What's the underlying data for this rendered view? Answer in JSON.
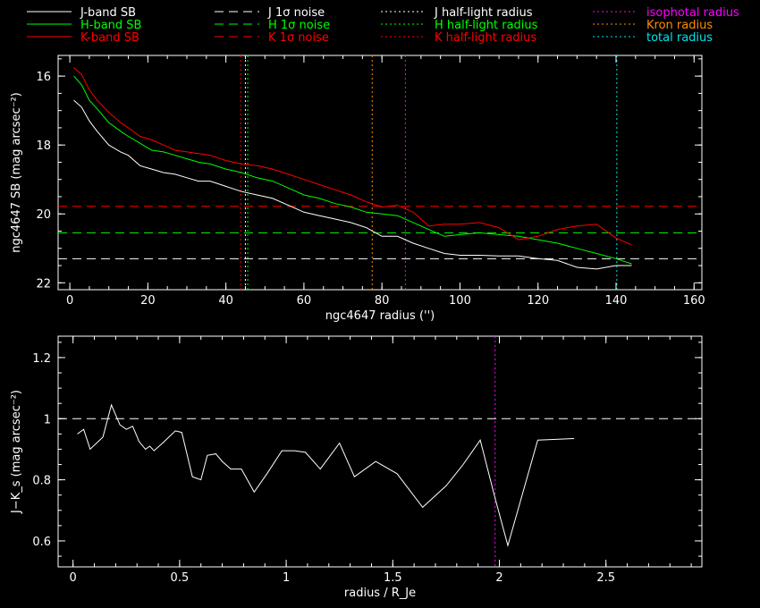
{
  "legend": [
    {
      "label": "J-band SB",
      "color": "#ffffff",
      "dash": "solid"
    },
    {
      "label": "H-band SB",
      "color": "#00ff00",
      "dash": "solid"
    },
    {
      "label": "K-band SB",
      "color": "#ff0000",
      "dash": "solid"
    },
    {
      "label": "J 1σ noise",
      "color": "#ffffff",
      "dash": "dashed"
    },
    {
      "label": "H 1σ noise",
      "color": "#00ff00",
      "dash": "dashed"
    },
    {
      "label": "K 1σ noise",
      "color": "#ff0000",
      "dash": "dashed"
    },
    {
      "label": "J half-light radius",
      "color": "#ffffff",
      "dash": "dotted"
    },
    {
      "label": "H half-light radius",
      "color": "#00ff00",
      "dash": "dotted"
    },
    {
      "label": "K half-light radius",
      "color": "#ff0000",
      "dash": "dotted"
    },
    {
      "label": "isophotal radius",
      "color": "#ff00ff",
      "dash": "dotted"
    },
    {
      "label": "Kron radius",
      "color": "#ff8c00",
      "dash": "dotted"
    },
    {
      "label": "total radius",
      "color": "#00e5ee",
      "dash": "dotted"
    }
  ],
  "chart_data": [
    {
      "type": "line",
      "xlabel": "ngc4647 radius ('')",
      "ylabel": "ngc4647 SB (mag arcsec⁻²)",
      "xlim": [
        -3,
        162
      ],
      "ylim": [
        22.2,
        15.4
      ],
      "y_inverted": true,
      "xticks": [
        0,
        20,
        40,
        60,
        80,
        100,
        120,
        140,
        160
      ],
      "yticks": [
        16,
        18,
        20,
        22
      ],
      "series": [
        {
          "name": "J-band SB",
          "color": "#ffffff",
          "x": [
            1,
            3,
            5,
            7,
            10,
            13,
            15,
            18,
            21,
            24,
            27,
            30,
            33,
            36,
            40,
            44,
            48,
            52,
            56,
            60,
            64,
            68,
            72,
            76,
            80,
            84,
            88,
            92,
            96,
            100,
            105,
            110,
            115,
            120,
            125,
            130,
            135,
            140,
            144
          ],
          "y": [
            16.7,
            16.9,
            17.3,
            17.6,
            18.0,
            18.2,
            18.3,
            18.6,
            18.7,
            18.8,
            18.85,
            18.95,
            19.05,
            19.05,
            19.2,
            19.35,
            19.45,
            19.55,
            19.75,
            19.95,
            20.05,
            20.15,
            20.25,
            20.4,
            20.65,
            20.65,
            20.85,
            21.0,
            21.15,
            21.2,
            21.2,
            21.22,
            21.22,
            21.3,
            21.35,
            21.55,
            21.6,
            21.5,
            21.5
          ]
        },
        {
          "name": "H-band SB",
          "color": "#00ff00",
          "x": [
            1,
            3,
            5,
            7,
            10,
            13,
            15,
            18,
            21,
            24,
            27,
            30,
            33,
            36,
            40,
            44,
            48,
            52,
            56,
            60,
            64,
            68,
            72,
            76,
            80,
            84,
            88,
            92,
            96,
            100,
            105,
            110,
            115,
            120,
            125,
            130,
            135,
            140,
            144
          ],
          "y": [
            16.0,
            16.25,
            16.7,
            16.95,
            17.35,
            17.6,
            17.75,
            17.95,
            18.15,
            18.2,
            18.3,
            18.4,
            18.5,
            18.55,
            18.7,
            18.8,
            18.95,
            19.05,
            19.25,
            19.45,
            19.55,
            19.7,
            19.8,
            19.95,
            20.0,
            20.05,
            20.25,
            20.45,
            20.65,
            20.6,
            20.55,
            20.6,
            20.65,
            20.75,
            20.85,
            21.0,
            21.15,
            21.3,
            21.45
          ]
        },
        {
          "name": "K-band SB",
          "color": "#ff0000",
          "x": [
            1,
            3,
            5,
            7,
            10,
            13,
            15,
            18,
            21,
            24,
            27,
            30,
            33,
            36,
            40,
            44,
            48,
            52,
            56,
            60,
            64,
            68,
            72,
            76,
            80,
            84,
            88,
            92,
            96,
            100,
            105,
            110,
            115,
            120,
            125,
            130,
            135,
            140,
            144
          ],
          "y": [
            15.75,
            15.95,
            16.4,
            16.7,
            17.05,
            17.35,
            17.5,
            17.75,
            17.85,
            18.0,
            18.15,
            18.2,
            18.25,
            18.3,
            18.45,
            18.55,
            18.6,
            18.7,
            18.85,
            19.0,
            19.15,
            19.3,
            19.45,
            19.65,
            19.8,
            19.75,
            19.95,
            20.35,
            20.3,
            20.3,
            20.25,
            20.4,
            20.75,
            20.65,
            20.45,
            20.35,
            20.3,
            20.7,
            20.9
          ]
        }
      ],
      "hlines": [
        {
          "name": "J 1σ noise",
          "y": 21.3,
          "color": "#ffffff",
          "dash": "dashed"
        },
        {
          "name": "H 1σ noise",
          "y": 20.55,
          "color": "#00ff00",
          "dash": "dashed"
        },
        {
          "name": "K 1σ noise",
          "y": 19.78,
          "color": "#ff0000",
          "dash": "dashed"
        }
      ],
      "vlines": [
        {
          "name": "K half-light radius",
          "x": 43.8,
          "color": "#ff0000",
          "dash": "dotted"
        },
        {
          "name": "J half-light radius",
          "x": 45.0,
          "color": "#ffffff",
          "dash": "dotted"
        },
        {
          "name": "H half-light radius",
          "x": 45.6,
          "color": "#00ff00",
          "dash": "dotted"
        },
        {
          "name": "Kron radius",
          "x": 77.5,
          "color": "#ff8c00",
          "dash": "dotted"
        },
        {
          "name": "isophotal radius",
          "x": 86.0,
          "color": "#ff00ff",
          "dash": "dotted"
        },
        {
          "name": "total radius",
          "x": 140.2,
          "color": "#00e5ee",
          "dash": "dotted"
        }
      ]
    },
    {
      "type": "line",
      "xlabel": "radius / R_Je",
      "ylabel": "J−K_s (mag arcsec⁻²)",
      "xlim": [
        -0.07,
        2.95
      ],
      "ylim": [
        0.515,
        1.27
      ],
      "xticks": [
        0,
        0.5,
        1,
        1.5,
        2,
        2.5
      ],
      "xticklabels": [
        "0",
        "0.5",
        "1",
        "1.5",
        "2",
        "2.5"
      ],
      "yticks": [
        0.6,
        0.8,
        1.0,
        1.2
      ],
      "yticklabels": [
        "0.6",
        "0.8",
        "1",
        "1.2"
      ],
      "series": [
        {
          "name": "J-K",
          "color": "#ffffff",
          "x": [
            0.02,
            0.05,
            0.08,
            0.14,
            0.18,
            0.22,
            0.25,
            0.28,
            0.31,
            0.34,
            0.36,
            0.38,
            0.42,
            0.48,
            0.51,
            0.56,
            0.6,
            0.63,
            0.67,
            0.7,
            0.74,
            0.79,
            0.85,
            0.91,
            0.98,
            1.04,
            1.09,
            1.16,
            1.25,
            1.32,
            1.42,
            1.52,
            1.64,
            1.75,
            1.83,
            1.91,
            1.98,
            2.04,
            2.18,
            2.35
          ],
          "y": [
            0.95,
            0.965,
            0.9,
            0.94,
            1.045,
            0.98,
            0.965,
            0.975,
            0.925,
            0.9,
            0.91,
            0.895,
            0.92,
            0.96,
            0.955,
            0.81,
            0.8,
            0.88,
            0.885,
            0.86,
            0.835,
            0.835,
            0.76,
            0.82,
            0.895,
            0.895,
            0.89,
            0.835,
            0.92,
            0.81,
            0.86,
            0.82,
            0.71,
            0.78,
            0.85,
            0.93,
            0.74,
            0.585,
            0.93,
            0.935
          ]
        }
      ],
      "hlines": [
        {
          "name": "reference",
          "y": 1.0,
          "color": "#ffffff",
          "dash": "dashed"
        }
      ],
      "vlines": [
        {
          "name": "isophotal radius",
          "x": 1.98,
          "color": "#ff00ff",
          "dash": "dotted"
        }
      ]
    }
  ]
}
